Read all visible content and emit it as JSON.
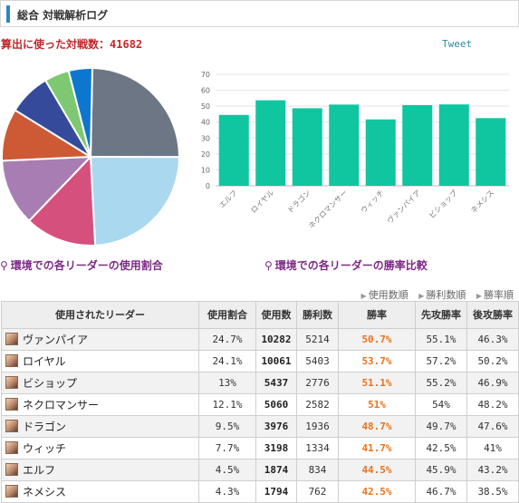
{
  "header": {
    "title": "総合 対戦解析ログ"
  },
  "summary": {
    "label": "算出に使った対戦数：",
    "count": "41682",
    "tweet": "Tweet"
  },
  "charts": {
    "pie_caption": "環境での各リーダーの使用割合",
    "bar_caption": "環境での各リーダーの勝率比較"
  },
  "chart_data": [
    {
      "type": "pie",
      "categories": [
        "ヴァンパイア",
        "ロイヤル",
        "ビショップ",
        "ネクロマンサー",
        "ドラゴン",
        "ウィッチ",
        "エルフ",
        "ネメシス"
      ],
      "values": [
        24.7,
        24.1,
        13,
        12.1,
        9.5,
        7.7,
        4.5,
        4.3
      ],
      "colors": [
        "#6c7684",
        "#a9d8ef",
        "#d6507e",
        "#a87db3",
        "#cd5a35",
        "#354a9a",
        "#7dc870",
        "#0c77cf"
      ]
    },
    {
      "type": "bar",
      "categories": [
        "エルフ",
        "ロイヤル",
        "ドラゴン",
        "ネクロマンサー",
        "ウィッチ",
        "ヴァンパイア",
        "ビショップ",
        "ネメシス"
      ],
      "values": [
        44.5,
        53.7,
        48.7,
        51,
        41.7,
        50.7,
        51.1,
        42.5
      ],
      "ylim": [
        0,
        70
      ],
      "yticks": [
        0,
        10,
        20,
        30,
        40,
        50,
        60,
        70
      ],
      "color": "#0fc6a0",
      "grid": true
    }
  ],
  "table": {
    "sort_links": [
      "使用数順",
      "勝利数順",
      "勝率順"
    ],
    "headers": [
      "使用されたリーダー",
      "使用割合",
      "使用数",
      "勝利数",
      "勝率",
      "先攻勝率",
      "後攻勝率"
    ],
    "rows": [
      {
        "name": "ヴァンパイア",
        "ratio": "24.7%",
        "used": "10282",
        "wins": "5214",
        "winrate": "50.7%",
        "first": "55.1%",
        "second": "46.3%"
      },
      {
        "name": "ロイヤル",
        "ratio": "24.1%",
        "used": "10061",
        "wins": "5403",
        "winrate": "53.7%",
        "first": "57.2%",
        "second": "50.2%"
      },
      {
        "name": "ビショップ",
        "ratio": "13%",
        "used": "5437",
        "wins": "2776",
        "winrate": "51.1%",
        "first": "55.2%",
        "second": "46.9%"
      },
      {
        "name": "ネクロマンサー",
        "ratio": "12.1%",
        "used": "5060",
        "wins": "2582",
        "winrate": "51%",
        "first": "54%",
        "second": "48.2%"
      },
      {
        "name": "ドラゴン",
        "ratio": "9.5%",
        "used": "3976",
        "wins": "1936",
        "winrate": "48.7%",
        "first": "49.7%",
        "second": "47.6%"
      },
      {
        "name": "ウィッチ",
        "ratio": "7.7%",
        "used": "3198",
        "wins": "1334",
        "winrate": "41.7%",
        "first": "42.5%",
        "second": "41%"
      },
      {
        "name": "エルフ",
        "ratio": "4.5%",
        "used": "1874",
        "wins": "834",
        "winrate": "44.5%",
        "first": "45.9%",
        "second": "43.2%"
      },
      {
        "name": "ネメシス",
        "ratio": "4.3%",
        "used": "1794",
        "wins": "762",
        "winrate": "42.5%",
        "first": "46.7%",
        "second": "38.5%"
      }
    ]
  }
}
